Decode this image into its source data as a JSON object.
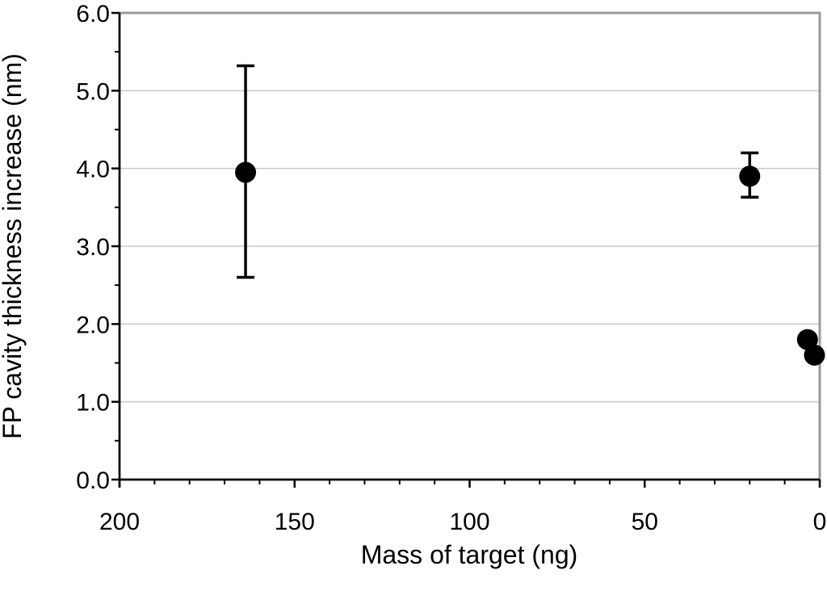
{
  "chart_data": {
    "type": "scatter",
    "title": "",
    "xlabel": "Mass of target (ng)",
    "ylabel": "FP cavity thickness increase (nm)",
    "xlim": [
      200,
      0
    ],
    "x_reversed": true,
    "ylim": [
      0,
      6
    ],
    "x_ticks": [
      "200",
      "150",
      "100",
      "50",
      "0"
    ],
    "y_ticks": [
      "0.0",
      "1.0",
      "2.0",
      "3.0",
      "4.0",
      "5.0",
      "6.0"
    ],
    "grid": "horizontal",
    "legend": "none",
    "colors": {
      "marker": "#000000",
      "grid": "#c8c8c8",
      "frame": "#999999"
    },
    "points": [
      {
        "x": 164,
        "y": 3.95,
        "y_err_low": 2.6,
        "y_err_high": 5.32
      },
      {
        "x": 20,
        "y": 3.9,
        "y_err_low": 3.63,
        "y_err_high": 4.2
      },
      {
        "x": 3.5,
        "y": 1.8
      },
      {
        "x": 1.5,
        "y": 1.6
      }
    ]
  }
}
